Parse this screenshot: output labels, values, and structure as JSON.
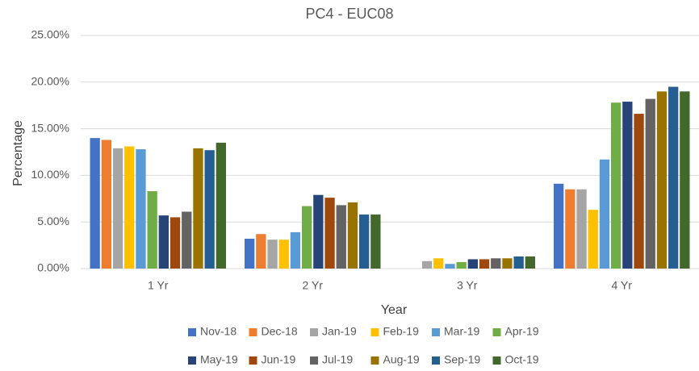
{
  "chart_data": {
    "type": "bar",
    "title": "PC4 - EUC08",
    "x_label": "Year",
    "y_label": "Percentage",
    "categories": [
      "1 Yr",
      "2 Yr",
      "3 Yr",
      "4 Yr"
    ],
    "series": [
      {
        "name": "Nov-18",
        "color": "#4472c4",
        "values": [
          14.0,
          3.2,
          0,
          9.1
        ]
      },
      {
        "name": "Dec-18",
        "color": "#ed7d31",
        "values": [
          13.8,
          3.7,
          0,
          8.5
        ]
      },
      {
        "name": "Jan-19",
        "color": "#a5a5a5",
        "values": [
          12.9,
          3.1,
          0.8,
          8.5
        ]
      },
      {
        "name": "Feb-19",
        "color": "#ffc000",
        "values": [
          13.1,
          3.1,
          1.1,
          6.3
        ]
      },
      {
        "name": "Mar-19",
        "color": "#5b9bd5",
        "values": [
          12.8,
          3.9,
          0.5,
          11.7
        ]
      },
      {
        "name": "Apr-19",
        "color": "#70ad47",
        "values": [
          8.3,
          6.7,
          0.7,
          17.8
        ]
      },
      {
        "name": "May-19",
        "color": "#264478",
        "values": [
          5.7,
          7.9,
          1.0,
          17.9
        ]
      },
      {
        "name": "Jun-19",
        "color": "#9e480e",
        "values": [
          5.5,
          7.6,
          1.0,
          16.6
        ]
      },
      {
        "name": "Jul-19",
        "color": "#636363",
        "values": [
          6.1,
          6.8,
          1.1,
          18.2
        ]
      },
      {
        "name": "Aug-19",
        "color": "#997300",
        "values": [
          12.9,
          7.1,
          1.1,
          19.0
        ]
      },
      {
        "name": "Sep-19",
        "color": "#255e91",
        "values": [
          12.7,
          5.8,
          1.3,
          19.5
        ]
      },
      {
        "name": "Oct-19",
        "color": "#43682b",
        "values": [
          13.5,
          5.8,
          1.3,
          19.0
        ]
      }
    ],
    "ylim": [
      0,
      25
    ],
    "yticks": [
      {
        "value": 0,
        "label": "0.00%"
      },
      {
        "value": 5,
        "label": "5.00%"
      },
      {
        "value": 10,
        "label": "10.00%"
      },
      {
        "value": 15,
        "label": "15.00%"
      },
      {
        "value": 20,
        "label": "20.00%"
      },
      {
        "value": 25,
        "label": "25.00%"
      }
    ],
    "grid": true,
    "legend": "bottom"
  }
}
